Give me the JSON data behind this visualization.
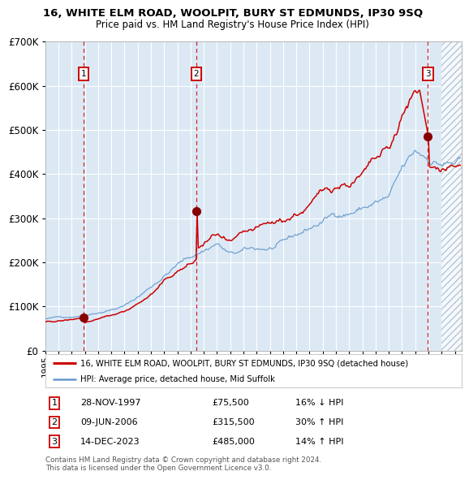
{
  "title": "16, WHITE ELM ROAD, WOOLPIT, BURY ST EDMUNDS, IP30 9SQ",
  "subtitle": "Price paid vs. HM Land Registry's House Price Index (HPI)",
  "red_line_label": "16, WHITE ELM ROAD, WOOLPIT, BURY ST EDMUNDS, IP30 9SQ (detached house)",
  "blue_line_label": "HPI: Average price, detached house, Mid Suffolk",
  "transactions": [
    {
      "num": 1,
      "date": "28-NOV-1997",
      "price": 75500,
      "year": 1997.91,
      "hpi_rel": "16% ↓ HPI"
    },
    {
      "num": 2,
      "date": "09-JUN-2006",
      "price": 315500,
      "year": 2006.44,
      "hpi_rel": "30% ↑ HPI"
    },
    {
      "num": 3,
      "date": "14-DEC-2023",
      "price": 485000,
      "year": 2023.96,
      "hpi_rel": "14% ↑ HPI"
    }
  ],
  "ytick_values": [
    0,
    100000,
    200000,
    300000,
    400000,
    500000,
    600000,
    700000
  ],
  "xmin": 1995.0,
  "xmax": 2026.5,
  "ymin": 0,
  "ymax": 700000,
  "footnote1": "Contains HM Land Registry data © Crown copyright and database right 2024.",
  "footnote2": "This data is licensed under the Open Government Licence v3.0.",
  "bg_color": "#dce9f5",
  "red_color": "#cc0000",
  "blue_color": "#6699cc",
  "grid_color": "#ffffff"
}
